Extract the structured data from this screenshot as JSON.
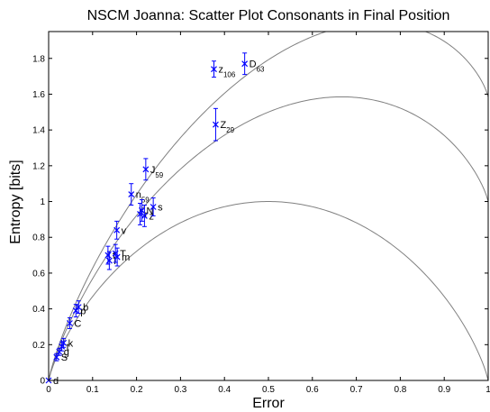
{
  "chart_data": {
    "type": "scatter",
    "title": "NSCM Joanna: Scatter Plot Consonants in Final Position",
    "xlabel": "Error",
    "ylabel": "Entropy [bits]",
    "xlim": [
      0,
      1
    ],
    "ylim": [
      0,
      1.95
    ],
    "xticks": [
      "0",
      "0.1",
      "0.2",
      "0.3",
      "0.4",
      "0.5",
      "0.6",
      "0.7",
      "0.8",
      "0.9",
      "1"
    ],
    "xtick_values": [
      0,
      0.1,
      0.2,
      0.3,
      0.4,
      0.5,
      0.6,
      0.7,
      0.8,
      0.9,
      1
    ],
    "yticks": [
      "0",
      "0.2",
      "0.4",
      "0.6",
      "0.8",
      "1",
      "1.2",
      "1.4",
      "1.6",
      "1.8"
    ],
    "ytick_values": [
      0,
      0.2,
      0.4,
      0.6,
      0.8,
      1.0,
      1.2,
      1.4,
      1.6,
      1.8
    ],
    "grid": false,
    "marker_color": "#0000ff",
    "curve_color": "#808080",
    "reference_curves": [
      {
        "k": 1
      },
      {
        "k": 2
      },
      {
        "k": 3
      }
    ],
    "points": [
      {
        "label": "d",
        "sub": "",
        "x": 0.0,
        "y": 0.0,
        "err": 0.0
      },
      {
        "label": "S",
        "sub": "",
        "x": 0.018,
        "y": 0.13,
        "err": 0.02
      },
      {
        "label": "g",
        "sub": "",
        "x": 0.024,
        "y": 0.16,
        "err": 0.02
      },
      {
        "label": "t",
        "sub": "",
        "x": 0.03,
        "y": 0.19,
        "err": 0.025
      },
      {
        "label": "k",
        "sub": "",
        "x": 0.034,
        "y": 0.21,
        "err": 0.025
      },
      {
        "label": "C",
        "sub": "",
        "x": 0.048,
        "y": 0.32,
        "err": 0.03
      },
      {
        "label": "p",
        "sub": "",
        "x": 0.062,
        "y": 0.39,
        "err": 0.035
      },
      {
        "label": "b",
        "sub": "",
        "x": 0.068,
        "y": 0.41,
        "err": 0.035
      },
      {
        "label": "f",
        "sub": "",
        "x": 0.135,
        "y": 0.7,
        "err": 0.05
      },
      {
        "label": "l",
        "sub": "",
        "x": 0.138,
        "y": 0.67,
        "err": 0.05
      },
      {
        "label": "T",
        "sub": "",
        "x": 0.152,
        "y": 0.71,
        "err": 0.05
      },
      {
        "label": "m",
        "sub": "",
        "x": 0.156,
        "y": 0.69,
        "err": 0.05
      },
      {
        "label": "v",
        "sub": "",
        "x": 0.155,
        "y": 0.84,
        "err": 0.05
      },
      {
        "label": "n",
        "sub": "59",
        "x": 0.188,
        "y": 1.04,
        "err": 0.06
      },
      {
        "label": "r",
        "sub": "",
        "x": 0.208,
        "y": 0.93,
        "err": 0.06
      },
      {
        "label": "N",
        "sub": "",
        "x": 0.212,
        "y": 0.95,
        "err": 0.06
      },
      {
        "label": "z",
        "sub": "",
        "x": 0.218,
        "y": 0.92,
        "err": 0.06
      },
      {
        "label": "s",
        "sub": "",
        "x": 0.238,
        "y": 0.97,
        "err": 0.05
      },
      {
        "label": "J",
        "sub": "59",
        "x": 0.221,
        "y": 1.18,
        "err": 0.06
      },
      {
        "label": "Z",
        "sub": "29",
        "x": 0.38,
        "y": 1.43,
        "err": 0.09
      },
      {
        "label": "z",
        "sub": "106",
        "x": 0.376,
        "y": 1.74,
        "err": 0.045
      },
      {
        "label": "D",
        "sub": "63",
        "x": 0.446,
        "y": 1.77,
        "err": 0.06
      }
    ]
  }
}
